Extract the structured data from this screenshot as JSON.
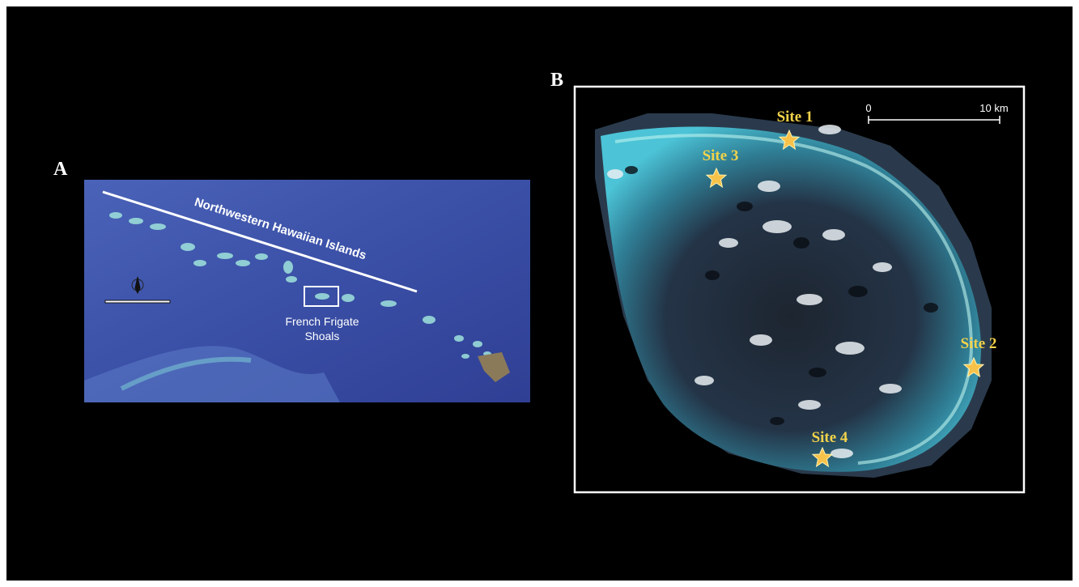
{
  "panel_a": {
    "label": "A",
    "chain_label": "Northwestern Hawaiian Islands",
    "inset_label": [
      "French Frigate",
      "Shoals"
    ]
  },
  "panel_b": {
    "label": "B",
    "scale_bar": {
      "start": "0",
      "end": "10 km"
    },
    "sites": [
      "Site 1",
      "Site 2",
      "Site 3",
      "Site 4"
    ]
  }
}
